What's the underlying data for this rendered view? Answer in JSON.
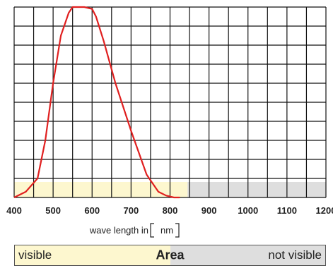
{
  "chart_data": {
    "type": "line",
    "title": "",
    "xlabel_prefix": "wave length in",
    "xlabel_unit": "nm",
    "xlim": [
      400,
      1200
    ],
    "ylim": [
      0,
      100
    ],
    "x_ticks": [
      400,
      500,
      600,
      700,
      800,
      900,
      1000,
      1100,
      1200
    ],
    "y_gridlines": 10,
    "grid": true,
    "series": [
      {
        "color": "#e02020",
        "x": [
          400,
          430,
          460,
          480,
          500,
          520,
          540,
          550,
          560,
          580,
          600,
          610,
          630,
          660,
          700,
          740,
          770,
          790,
          810,
          825
        ],
        "y": [
          0,
          3,
          10,
          30,
          60,
          85,
          97,
          100,
          100,
          100,
          99,
          95,
          82,
          60,
          35,
          12,
          3,
          1,
          0,
          0
        ]
      }
    ],
    "regions": [
      {
        "label": "visible",
        "from": 400,
        "to": 845,
        "color": "#fdf7cf"
      },
      {
        "label": "not visible",
        "from": 845,
        "to": 1200,
        "color": "#dedede"
      }
    ]
  },
  "area_bar": {
    "left_label": "visible",
    "center_label": "Area",
    "right_label": "not visible"
  }
}
